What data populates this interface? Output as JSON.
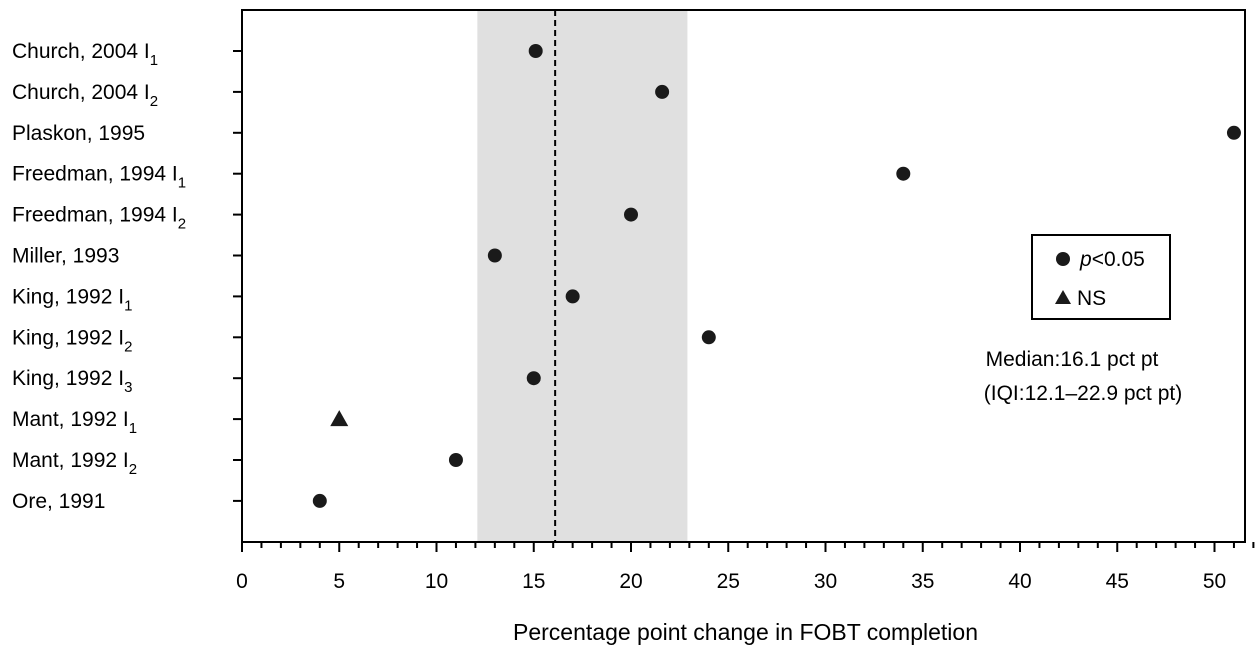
{
  "chart_data": {
    "type": "scatter",
    "orientation": "horizontal",
    "xlabel": "Percentage point change in FOBT completion",
    "xlim": [
      0,
      52
    ],
    "x_ticks": [
      "0",
      "5",
      "10",
      "15",
      "20",
      "25",
      "30",
      "35",
      "40",
      "45",
      "50"
    ],
    "x_tick_values": [
      0,
      5,
      10,
      15,
      20,
      25,
      30,
      35,
      40,
      45,
      50
    ],
    "x_minor_step": 1,
    "grid": false,
    "rows": [
      {
        "label": "Church, 2004 I",
        "sub": "1",
        "value": 15.1,
        "marker": "circle"
      },
      {
        "label": "Church, 2004 I",
        "sub": "2",
        "value": 21.6,
        "marker": "circle"
      },
      {
        "label": "Plaskon, 1995",
        "sub": "",
        "value": 51.0,
        "marker": "circle"
      },
      {
        "label": "Freedman, 1994 I",
        "sub": "1",
        "value": 34.0,
        "marker": "circle"
      },
      {
        "label": "Freedman, 1994 I",
        "sub": "2",
        "value": 20.0,
        "marker": "circle"
      },
      {
        "label": "Miller, 1993",
        "sub": "",
        "value": 13.0,
        "marker": "circle"
      },
      {
        "label": "King, 1992 I",
        "sub": "1",
        "value": 17.0,
        "marker": "circle"
      },
      {
        "label": "King, 1992 I",
        "sub": "2",
        "value": 24.0,
        "marker": "circle"
      },
      {
        "label": "King, 1992 I",
        "sub": "3",
        "value": 15.0,
        "marker": "circle"
      },
      {
        "label": "Mant, 1992 I",
        "sub": "1",
        "value": 5.0,
        "marker": "triangle"
      },
      {
        "label": "Mant, 1992 I",
        "sub": "2",
        "value": 11.0,
        "marker": "circle"
      },
      {
        "label": "Ore, 1991",
        "sub": "",
        "value": 4.0,
        "marker": "circle"
      }
    ],
    "median": 16.1,
    "iqr": [
      12.1,
      22.9
    ],
    "shade_color": "#e0e0e0",
    "marker_color": "#1a1a1a",
    "legend": {
      "position": "right",
      "entries": [
        {
          "marker": "circle",
          "italic": "p",
          "text": "<0.05"
        },
        {
          "marker": "triangle",
          "italic": "",
          "text": "NS"
        }
      ]
    },
    "annotation": [
      "Median:16.1 pct pt",
      "(IQI:12.1–22.9 pct pt)"
    ]
  }
}
